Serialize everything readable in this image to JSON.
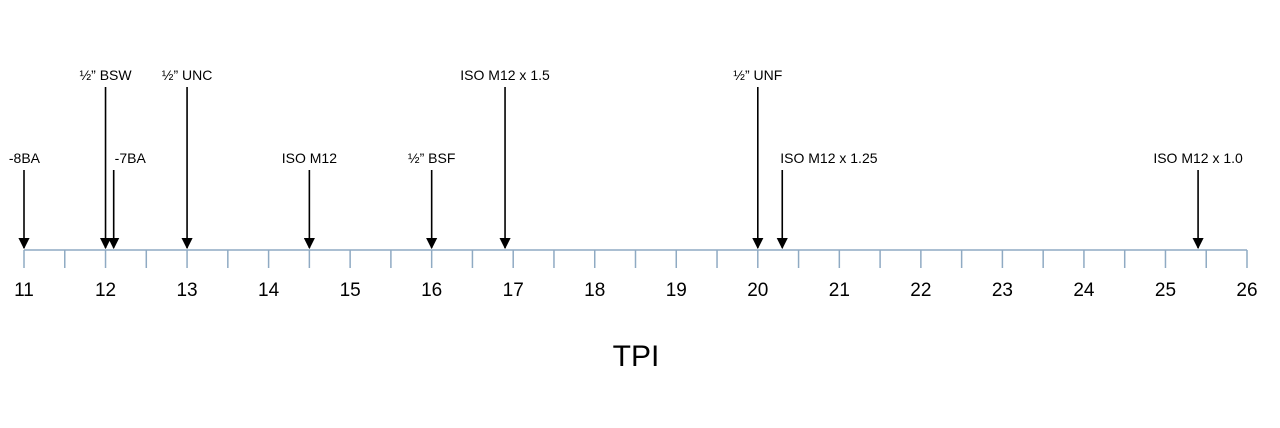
{
  "chart_data": {
    "type": "numberline",
    "x_label": "TPI",
    "xlim": [
      11,
      26
    ],
    "xticks": [
      11,
      12,
      13,
      14,
      15,
      16,
      17,
      18,
      19,
      20,
      21,
      22,
      23,
      24,
      25,
      26
    ],
    "minor_xticks": [
      11.5,
      12.5,
      13.5,
      14.5,
      15.5,
      16.5,
      17.5,
      18.5,
      19.5,
      20.5,
      21.5,
      22.5,
      23.5,
      24.5,
      25.5
    ],
    "axis_color": "#8faac3",
    "arrow_color": "#000000",
    "annotations": [
      {
        "label": "-8BA",
        "x": 11.0
      },
      {
        "label": "½” BSW",
        "x": 12.0
      },
      {
        "label": "-7BA",
        "x": 12.1
      },
      {
        "label": "½” UNC",
        "x": 13.0
      },
      {
        "label": "ISO M12",
        "x": 14.5
      },
      {
        "label": "½” BSF",
        "x": 16.0
      },
      {
        "label": "ISO M12 x 1.5",
        "x": 16.9
      },
      {
        "label": "½” UNF",
        "x": 20.0
      },
      {
        "label": "ISO M12 x 1.25",
        "x": 20.3
      },
      {
        "label": "ISO M12 x 1.0",
        "x": 25.4
      }
    ]
  }
}
